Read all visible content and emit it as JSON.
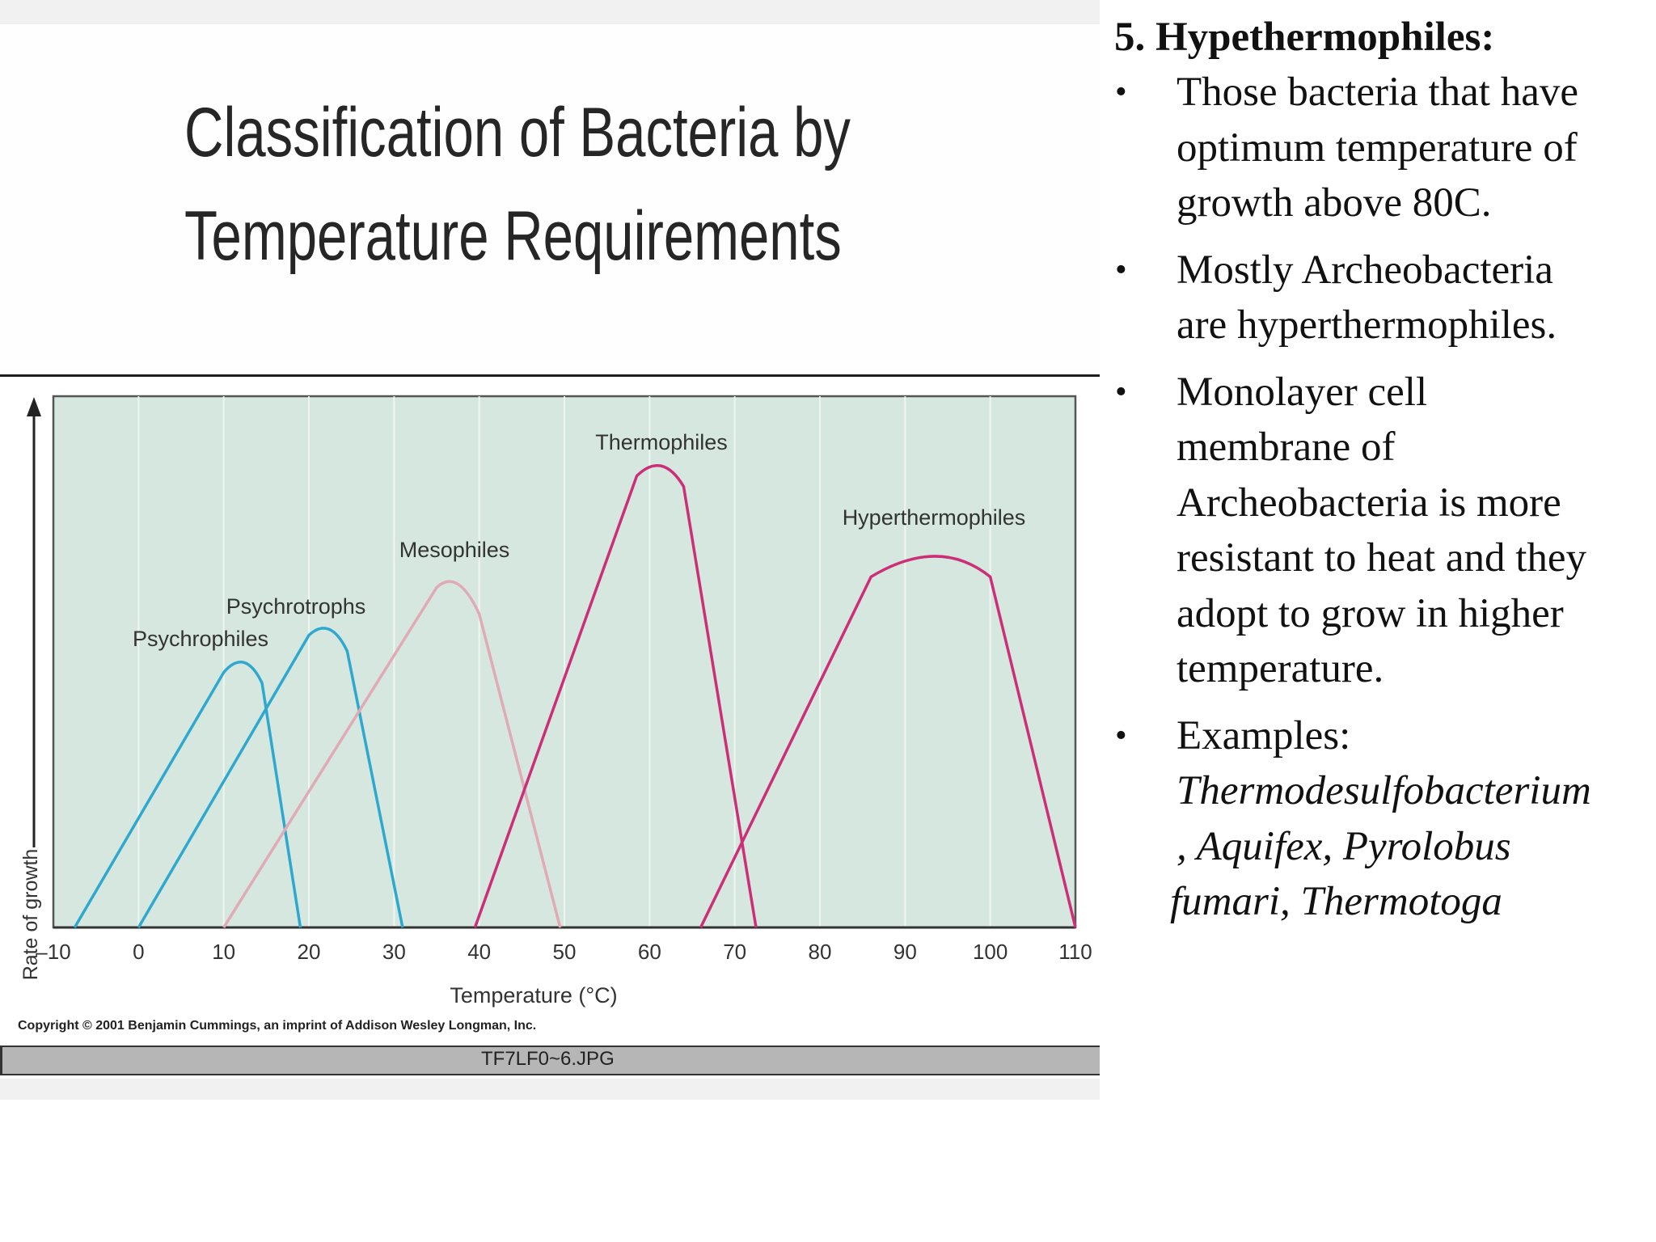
{
  "slide": {
    "title_lines": [
      "Classification of Bacteria by",
      "Temperature Requirements"
    ],
    "caption": "TF7LF0~6.JPG",
    "copyright": "Copyright © 2001 Benjamin Cummings, an imprint of Addison Wesley Longman, Inc."
  },
  "notes": {
    "heading": "5. Hypethermophiles:",
    "bullet_glyph": "•",
    "bullets": [
      {
        "lines": [
          "Those bacteria that have",
          "optimum temperature of",
          "growth above 80C."
        ]
      },
      {
        "lines": [
          "Mostly Archeobacteria",
          "are hyperthermophiles."
        ]
      },
      {
        "lines": [
          "Monolayer cell",
          "membrane of",
          "Archeobacteria is more",
          "resistant to heat and they",
          "adopt to grow in higher",
          "temperature."
        ]
      },
      {
        "lines": [
          "Examples:"
        ],
        "italic_lines": [
          "Thermodesulfobacterium",
          ", Aquifex, Pyrolobus",
          "fumari, Thermotoga"
        ]
      }
    ]
  },
  "colors": {
    "plot_background": "#d5e7de",
    "grid": "#eef6f1",
    "psychro": "#2fa8cf",
    "mesophile": "#e0aab6",
    "thermo": "#cc2f77"
  },
  "chart_data": {
    "type": "line",
    "title": "",
    "xlabel": "Temperature (°C)",
    "ylabel": "Rate of growth",
    "xlim": [
      -10,
      110
    ],
    "x_ticks": [
      -10,
      0,
      10,
      20,
      30,
      40,
      50,
      60,
      70,
      80,
      90,
      100,
      110
    ],
    "x_tick_labels": [
      "–10",
      "0",
      "10",
      "20",
      "30",
      "40",
      "50",
      "60",
      "70",
      "80",
      "90",
      "100",
      "110"
    ],
    "ylim": [
      0,
      1
    ],
    "grid": "vertical",
    "series": [
      {
        "name": "Psychrophiles",
        "color_key": "psychro",
        "points": [
          [
            -7.5,
            0
          ],
          [
            10,
            0.48
          ],
          [
            12.5,
            0.5
          ],
          [
            14.5,
            0.46
          ],
          [
            19,
            0
          ]
        ]
      },
      {
        "name": "Psychrotrophs",
        "color_key": "psychro",
        "points": [
          [
            0,
            0
          ],
          [
            20,
            0.55
          ],
          [
            22.5,
            0.56
          ],
          [
            24.5,
            0.52
          ],
          [
            31,
            0
          ]
        ]
      },
      {
        "name": "Mesophiles",
        "color_key": "mesophile",
        "points": [
          [
            10,
            0
          ],
          [
            35,
            0.64
          ],
          [
            37.5,
            0.65
          ],
          [
            40,
            0.59
          ],
          [
            49.5,
            0
          ]
        ]
      },
      {
        "name": "Thermophiles",
        "color_key": "thermo",
        "points": [
          [
            39.5,
            0
          ],
          [
            58.5,
            0.85
          ],
          [
            61.5,
            0.87
          ],
          [
            64,
            0.83
          ],
          [
            72.5,
            0
          ]
        ]
      },
      {
        "name": "Hyperthermophiles",
        "color_key": "thermo",
        "points": [
          [
            66,
            0
          ],
          [
            86,
            0.66
          ],
          [
            94,
            0.71
          ],
          [
            100,
            0.66
          ],
          [
            110,
            0
          ]
        ]
      }
    ]
  }
}
